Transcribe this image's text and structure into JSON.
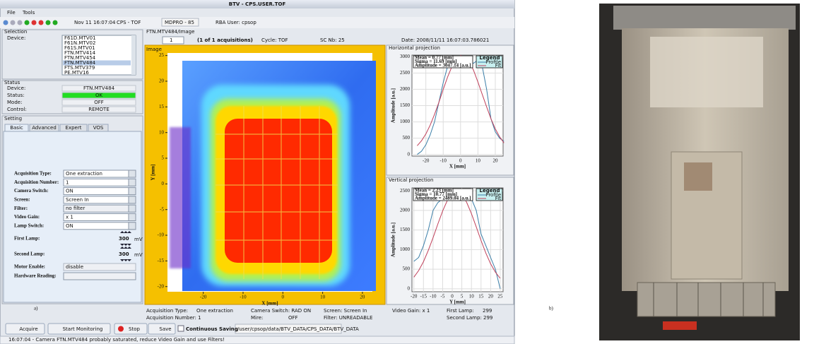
{
  "window": {
    "title": "BTV - CPS.USER.TOF",
    "menu": [
      "File",
      "Tools"
    ]
  },
  "toolbar": {
    "time": "Nov 11 16:07:04",
    "cycle": "CPS - TOF",
    "mdpro": "MDPRO - 85",
    "user": "RBA User: cpsop"
  },
  "selection": {
    "title": "Selection",
    "device_label": "Device:",
    "devices": [
      {
        "name": "F61D.MTV01"
      },
      {
        "name": "F61N.MTV02"
      },
      {
        "name": "F61S.MTV01"
      },
      {
        "name": "FTN.MTV414"
      },
      {
        "name": "FTN.MTV454"
      },
      {
        "name": "FTN.MTV484",
        "selected": true
      },
      {
        "name": "FTS.MTV379"
      },
      {
        "name": "PE.MTV16"
      }
    ]
  },
  "status": {
    "title": "Status",
    "rows": [
      [
        "Device:",
        "FTN.MTV484"
      ],
      [
        "Status:",
        "OK"
      ],
      [
        "Mode:",
        "OFF"
      ],
      [
        "Control:",
        "REMOTE"
      ]
    ]
  },
  "setting": {
    "title": "Setting",
    "tabs": [
      "Basic",
      "Advanced",
      "Expert",
      "VOS"
    ],
    "fields": [
      [
        "Acquisition Type:",
        "One extraction"
      ],
      [
        "Acquisition Number:",
        "1"
      ],
      [
        "Camera Switch:",
        "ON"
      ],
      [
        "Screen:",
        "Screen In"
      ],
      [
        "Filter:",
        "no filter"
      ],
      [
        "Video Gain:",
        "x 1"
      ],
      [
        "Lamp Switch:",
        "ON"
      ]
    ],
    "lamps": [
      [
        "First Lamp:",
        "300",
        "mV"
      ],
      [
        "Second Lamp:",
        "300",
        "mV"
      ]
    ],
    "motor": [
      "Motor Enable:",
      "disable"
    ],
    "hardware": "Hardware Reading:"
  },
  "image_panel": {
    "path": "FTN.MTV484/Image",
    "page": "1",
    "count": "(1 of 1 acquisitions)",
    "cycle": "Cycle: TOF",
    "sc": "SC Nb: 25",
    "date": "Date: 2008/11/11 16:07:03.786021"
  },
  "chart_data": [
    {
      "type": "image",
      "title": "Image",
      "xlabel": "X [mm]",
      "ylabel": "Y [mm]",
      "xlim": [
        -29,
        22.5
      ],
      "ylim": [
        -21,
        25.5
      ],
      "xticks": [
        -20,
        -10,
        0,
        10,
        20
      ],
      "yticks": [
        25,
        20,
        15,
        10,
        5,
        0,
        -5,
        -10,
        -15,
        -20
      ]
    },
    {
      "type": "line",
      "title": "Horizontal projection",
      "xlabel": "X [mm]",
      "ylabel": "Amplitude [a.u.]",
      "legend_title": "Legend",
      "stats": [
        "Mean = 0.77 [mm]",
        "Sigma = 11.69 [mm]",
        "Amplitude = 3047.14 [a.u.]"
      ],
      "x": [
        -25,
        -22.5,
        -20,
        -17.5,
        -15,
        -12.5,
        -10,
        -7.5,
        -5,
        -2.5,
        0,
        2.5,
        5,
        7.5,
        10,
        12.5,
        15,
        17.5,
        20,
        22.5,
        25
      ],
      "series": [
        {
          "name": "Profile",
          "color": "#3a7ea8",
          "values": [
            0,
            100,
            300,
            600,
            1000,
            1600,
            2200,
            2700,
            2850,
            2900,
            2900,
            2900,
            2850,
            2800,
            2900,
            2700,
            2000,
            1100,
            700,
            500,
            400
          ]
        },
        {
          "name": "Fit",
          "color": "#c0405a",
          "values": [
            268,
            420,
            630,
            899,
            1227,
            1600,
            1994,
            2373,
            2697,
            2930,
            3041,
            3014,
            2855,
            2582,
            2222,
            1842,
            1460,
            1097,
            789,
            541,
            356
          ]
        }
      ],
      "xlim": [
        -28,
        24.5
      ],
      "ylim": [
        -50,
        3050
      ],
      "xticks": [
        -20,
        -10,
        0,
        10,
        20
      ],
      "yticks": [
        0,
        500,
        1000,
        1500,
        2000,
        2500,
        3000
      ],
      "grid": true
    },
    {
      "type": "line",
      "title": "Vertical projection",
      "xlabel": "Y [mm]",
      "ylabel": "Amplitude [a.u.]",
      "legend_title": "Legend",
      "stats": [
        "Mean = 2.23 [mm]",
        "Sigma = 10.77 [mm]",
        "Amplitude = 2489.04 [a.u.]"
      ],
      "x": [
        -20,
        -17.5,
        -15,
        -12.5,
        -10,
        -7.5,
        -5,
        -2.5,
        0,
        2.5,
        5,
        7.5,
        10,
        12.5,
        15,
        17.5,
        20,
        22.5,
        25
      ],
      "series": [
        {
          "name": "Profile",
          "color": "#3a7ea8",
          "values": [
            700,
            800,
            1100,
            1500,
            2000,
            2200,
            2300,
            2350,
            2450,
            2400,
            2350,
            2400,
            2300,
            2000,
            1400,
            1100,
            800,
            500,
            0
          ]
        },
        {
          "name": "Fit",
          "color": "#c0405a",
          "values": [
            296,
            465,
            692,
            977,
            1306,
            1655,
            1987,
            2260,
            2436,
            2488,
            2408,
            2207,
            1918,
            1580,
            1232,
            911,
            639,
            424,
            267
          ]
        }
      ],
      "xlim": [
        -21,
        26.5
      ],
      "ylim": [
        -75,
        2575
      ],
      "xticks": [
        -20,
        -15,
        -10,
        -5,
        0,
        5,
        10,
        15,
        20,
        25
      ],
      "yticks": [
        0,
        500,
        1000,
        1500,
        2000,
        2500
      ],
      "grid": true
    }
  ],
  "info": [
    "Acquisition Type:",
    "One extraction",
    "Camera Switch: RAD ON",
    "Screen: Screen In",
    "Video Gain: x 1",
    "First Lamp:",
    "299",
    "Acquisition Number: 1",
    "Mire:",
    "OFF",
    "Filter: UNREADABLE",
    "Second Lamp: 299"
  ],
  "buttons": [
    "Acquire",
    "Start Monitoring",
    "Stop",
    "Save",
    "Continuous Saving"
  ],
  "save_path": "/user/cpsop/data/BTV_DATA/CPS_DATA/BTV_DATA",
  "status_message": "16:07:04 - Camera FTN.MTV484 probably saturated, reduce Video Gain and use Filters!",
  "labels": [
    "a)",
    "b)"
  ]
}
